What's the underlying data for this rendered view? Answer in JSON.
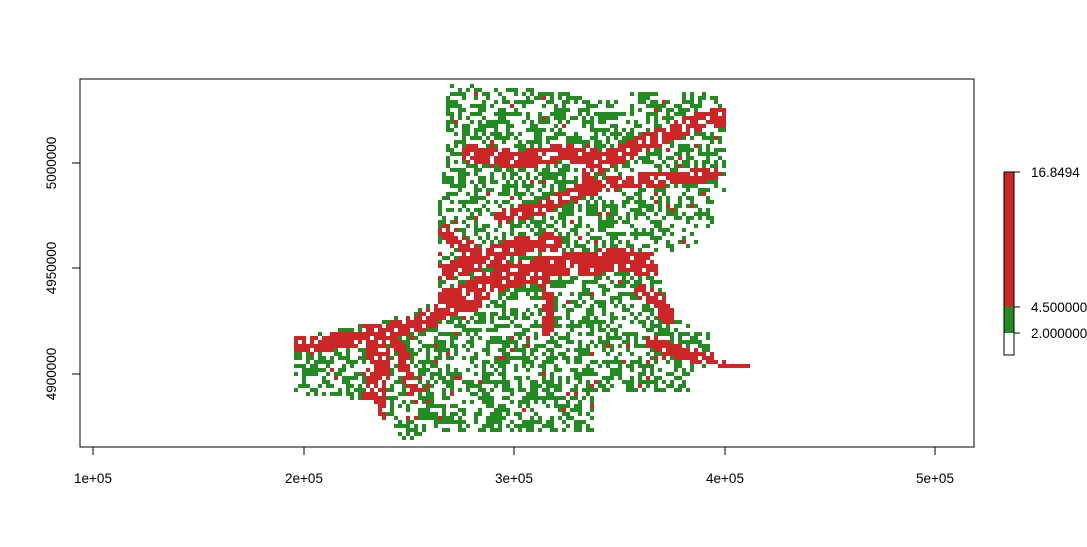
{
  "colors": {
    "background": "#ffffff",
    "axis": "#000000",
    "low_class": "#ffffff",
    "mid_class": "#228B22",
    "high_class": "#CD2626"
  },
  "chart_data": {
    "type": "heatmap",
    "x_ticks": [
      "1e+05",
      "2e+05",
      "3e+05",
      "4e+05",
      "5e+05"
    ],
    "x_tick_values": [
      100000,
      200000,
      300000,
      400000,
      500000
    ],
    "y_ticks": [
      "4900000",
      "4950000",
      "5000000"
    ],
    "y_tick_values": [
      4900000,
      4950000,
      5000000
    ],
    "xlim": [
      96000,
      516000
    ],
    "ylim": [
      4865000,
      5040000
    ],
    "legend": {
      "labels": [
        "16.8494",
        "4.500000",
        "2.000000"
      ],
      "breaks": [
        2.0,
        4.5,
        16.8494
      ],
      "class_colors": [
        "#ffffff",
        "#228B22",
        "#CD2626"
      ],
      "placement": "right"
    }
  }
}
